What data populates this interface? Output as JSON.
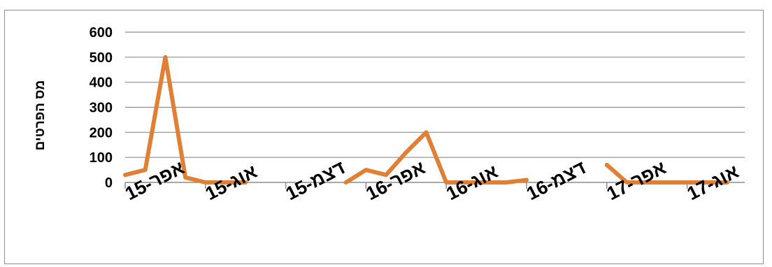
{
  "chart_data": {
    "type": "line",
    "title": "",
    "ylabel": "מס הפרטים",
    "xlabel": "",
    "ylim": [
      0,
      600
    ],
    "yticks": [
      0,
      100,
      200,
      300,
      400,
      500,
      600
    ],
    "grid": true,
    "legend": "none",
    "line_color": "#E07F36",
    "x_tick_labels": [
      "אפר-15",
      "אוג-15",
      "דצמ-15",
      "אפר-16",
      "אוג-16",
      "דצמ-16",
      "אפר-17",
      "אוג-17"
    ],
    "x": [
      "2015-04",
      "2015-05",
      "2015-06",
      "2015-07",
      "2015-08",
      "2015-09",
      "2015-10",
      "2015-11",
      "2015-12",
      "2016-01",
      "2016-02",
      "2016-03",
      "2016-04",
      "2016-05",
      "2016-06",
      "2016-07",
      "2016-08",
      "2016-09",
      "2016-10",
      "2016-11",
      "2016-12",
      "2017-01",
      "2017-02",
      "2017-03",
      "2017-04",
      "2017-05",
      "2017-06",
      "2017-07",
      "2017-08",
      "2017-09",
      "2017-10"
    ],
    "series": [
      {
        "values": [
          30,
          50,
          500,
          20,
          0,
          0,
          0,
          null,
          null,
          null,
          null,
          0,
          50,
          30,
          120,
          200,
          0,
          0,
          0,
          0,
          10,
          null,
          null,
          null,
          70,
          0,
          0,
          0,
          0,
          0,
          0
        ]
      }
    ]
  }
}
